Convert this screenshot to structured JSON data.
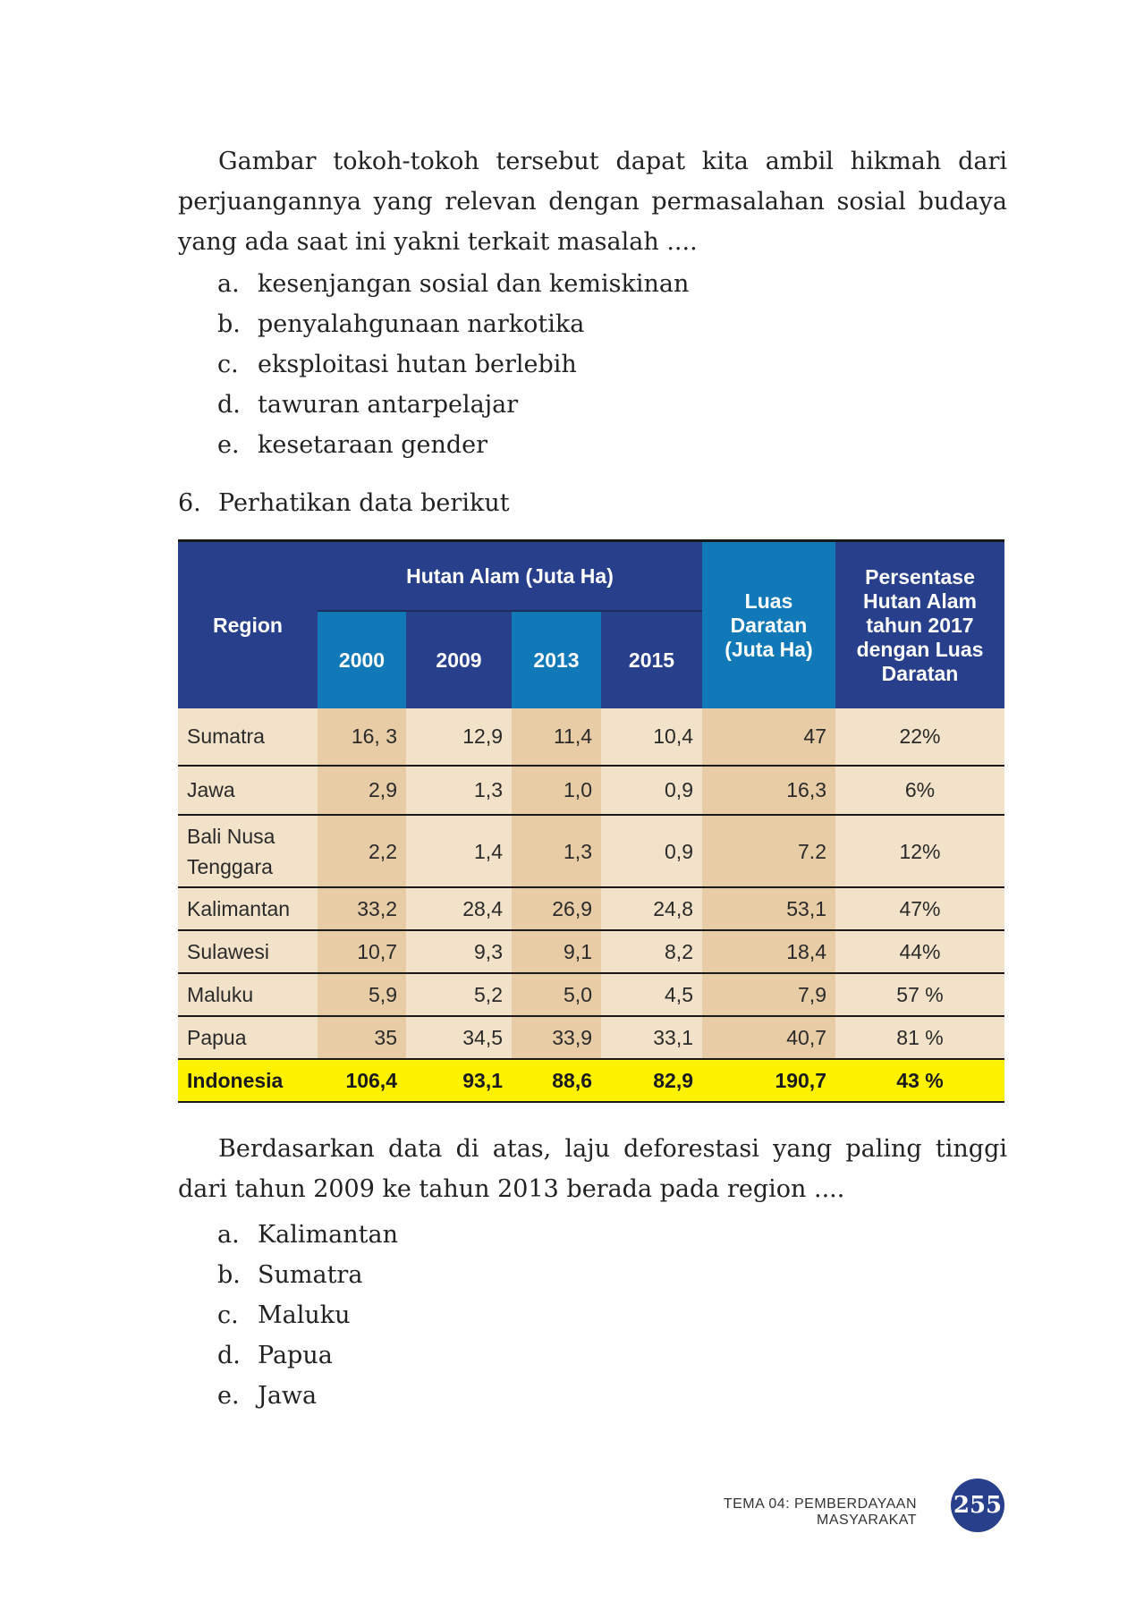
{
  "intro": {
    "paragraph": "Gambar tokoh-tokoh tersebut dapat kita ambil hikmah dari perjuangannya yang relevan dengan permasalahan sosial budaya yang ada saat ini yakni terkait masalah ....",
    "options": [
      {
        "letter": "a.",
        "text": "kesenjangan sosial dan kemiskinan"
      },
      {
        "letter": "b.",
        "text": "penyalahgunaan narkotika"
      },
      {
        "letter": "c.",
        "text": "eksploitasi hutan berlebih"
      },
      {
        "letter": "d.",
        "text": "tawuran antarpelajar"
      },
      {
        "letter": "e.",
        "text": "kesetaraan gender"
      }
    ]
  },
  "question6": {
    "number": "6.",
    "prompt": "Perhatikan data berikut"
  },
  "table": {
    "headers": {
      "region": "Region",
      "hutan_alam": "Hutan Alam (Juta Ha)",
      "years": [
        "2000",
        "2009",
        "2013",
        "2015"
      ],
      "luas_daratan": "Luas Daratan (Juta Ha)",
      "persentase": "Persentase Hutan Alam tahun 2017 dengan Luas Daratan"
    },
    "rows": [
      {
        "region": "Sumatra",
        "y2000": "16, 3",
        "y2009": "12,9",
        "y2013": "11,4",
        "y2015": "10,4",
        "luas": "47",
        "pct": "22%"
      },
      {
        "region": "Jawa",
        "y2000": "2,9",
        "y2009": "1,3",
        "y2013": "1,0",
        "y2015": "0,9",
        "luas": "16,3",
        "pct": "6%"
      },
      {
        "region": "Bali Nusa Tenggara",
        "y2000": "2,2",
        "y2009": "1,4",
        "y2013": "1,3",
        "y2015": "0,9",
        "luas": "7.2",
        "pct": "12%"
      },
      {
        "region": "Kalimantan",
        "y2000": "33,2",
        "y2009": "28,4",
        "y2013": "26,9",
        "y2015": "24,8",
        "luas": "53,1",
        "pct": "47%"
      },
      {
        "region": "Sulawesi",
        "y2000": "10,7",
        "y2009": "9,3",
        "y2013": "9,1",
        "y2015": "8,2",
        "luas": "18,4",
        "pct": "44%"
      },
      {
        "region": "Maluku",
        "y2000": "5,9",
        "y2009": "5,2",
        "y2013": "5,0",
        "y2015": "4,5",
        "luas": "7,9",
        "pct": "57 %"
      },
      {
        "region": "Papua",
        "y2000": "35",
        "y2009": "34,5",
        "y2013": "33,9",
        "y2015": "33,1",
        "luas": "40,7",
        "pct": "81 %"
      }
    ],
    "total": {
      "region": "Indonesia",
      "y2000": "106,4",
      "y2009": "93,1",
      "y2013": "88,6",
      "y2015": "82,9",
      "luas": "190,7",
      "pct": "43 %"
    }
  },
  "followup": {
    "paragraph": "Berdasarkan data di atas, laju deforestasi yang paling tinggi dari tahun 2009 ke tahun 2013 berada pada region ....",
    "options": [
      {
        "letter": "a.",
        "text": "Kalimantan"
      },
      {
        "letter": "b.",
        "text": "Sumatra"
      },
      {
        "letter": "c.",
        "text": "Maluku"
      },
      {
        "letter": "d.",
        "text": "Papua"
      },
      {
        "letter": "e.",
        "text": "Jawa"
      }
    ]
  },
  "footer": {
    "theme": "TEMA 04: PEMBERDAYAAN MASYARAKAT",
    "page_number": "255"
  },
  "colors": {
    "header_dark": "#283f8c",
    "header_light": "#1179b8",
    "cell_light": "#f2e2c9",
    "cell_dark": "#e7cca6",
    "total_highlight": "#fff200"
  }
}
